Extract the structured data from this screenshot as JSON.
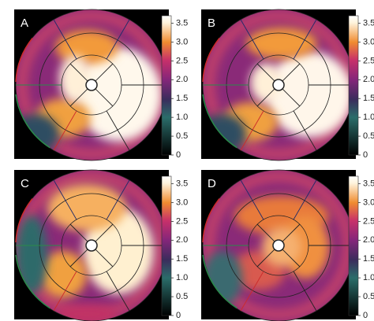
{
  "panels": [
    {
      "label": "A",
      "colorbar": {
        "range": [
          0,
          3.7
        ],
        "ticks": [
          0,
          0.5,
          {
            "value": 1,
            "label": "1.0"
          },
          1.5,
          {
            "value": 2,
            "label": "2.0"
          },
          2.5,
          {
            "value": 3,
            "label": "3.0"
          },
          3.5
        ]
      }
    },
    {
      "label": "B",
      "colorbar": {
        "range": [
          0,
          3.7
        ],
        "ticks": [
          0,
          0.5,
          {
            "value": 1,
            "label": "1.0"
          },
          1.5,
          {
            "value": 2,
            "label": "2.0"
          },
          2.5,
          {
            "value": 3,
            "label": "3.0"
          },
          3.5
        ]
      }
    },
    {
      "label": "C",
      "colorbar": {
        "range": [
          0,
          3.7
        ],
        "ticks": [
          0,
          0.5,
          {
            "value": 1,
            "label": "1.0"
          },
          1.5,
          {
            "value": 2,
            "label": "2.0"
          },
          2.5,
          {
            "value": 3,
            "label": "3.0"
          },
          3.5
        ]
      }
    },
    {
      "label": "D",
      "colorbar": {
        "range": [
          0,
          3.7
        ],
        "ticks": [
          0,
          0.5,
          {
            "value": 1,
            "label": "1.0"
          },
          1.5,
          {
            "value": 2,
            "label": "2.0"
          },
          2.5,
          {
            "value": 3,
            "label": "3.0"
          },
          3.5
        ]
      }
    }
  ]
}
